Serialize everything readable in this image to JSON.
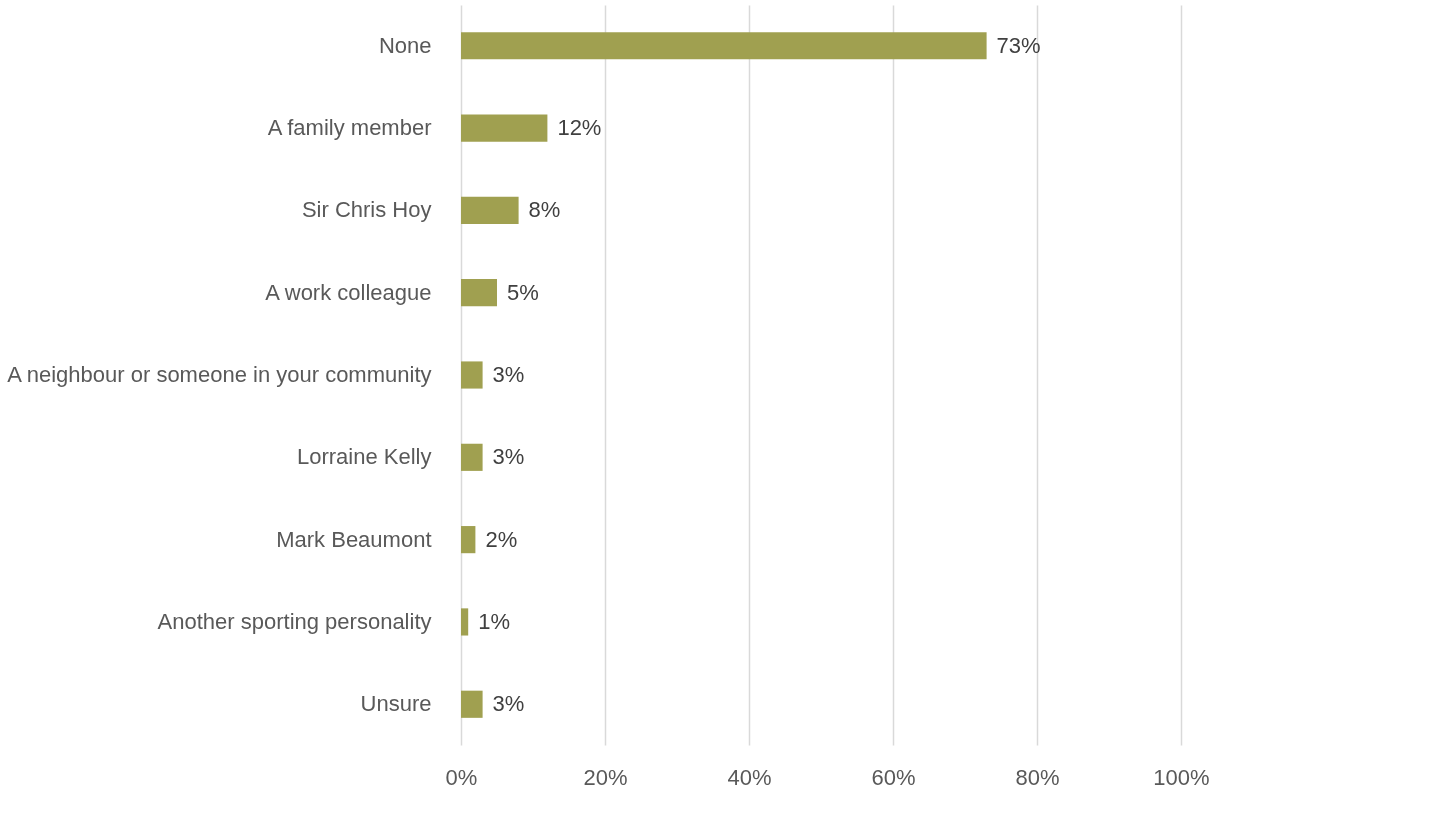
{
  "chart_data": {
    "type": "bar",
    "orientation": "horizontal",
    "categories": [
      "None",
      "A family member",
      "Sir Chris Hoy",
      "A work colleague",
      "A neighbour or someone in your community",
      "Lorraine Kelly",
      "Mark Beaumont",
      "Another sporting personality",
      "Unsure"
    ],
    "values": [
      73,
      12,
      8,
      5,
      3,
      3,
      2,
      1,
      3
    ],
    "value_labels": [
      "73%",
      "12%",
      "8%",
      "5%",
      "3%",
      "3%",
      "2%",
      "1%",
      "3%"
    ],
    "color": "#a0a050",
    "xlim": [
      0,
      100
    ],
    "xticks": [
      {
        "value": 0,
        "label": "0%"
      },
      {
        "value": 20,
        "label": "20%"
      },
      {
        "value": 40,
        "label": "40%"
      },
      {
        "value": 60,
        "label": "60%"
      },
      {
        "value": 80,
        "label": "80%"
      },
      {
        "value": 100,
        "label": "100%"
      }
    ],
    "grid": "x"
  }
}
